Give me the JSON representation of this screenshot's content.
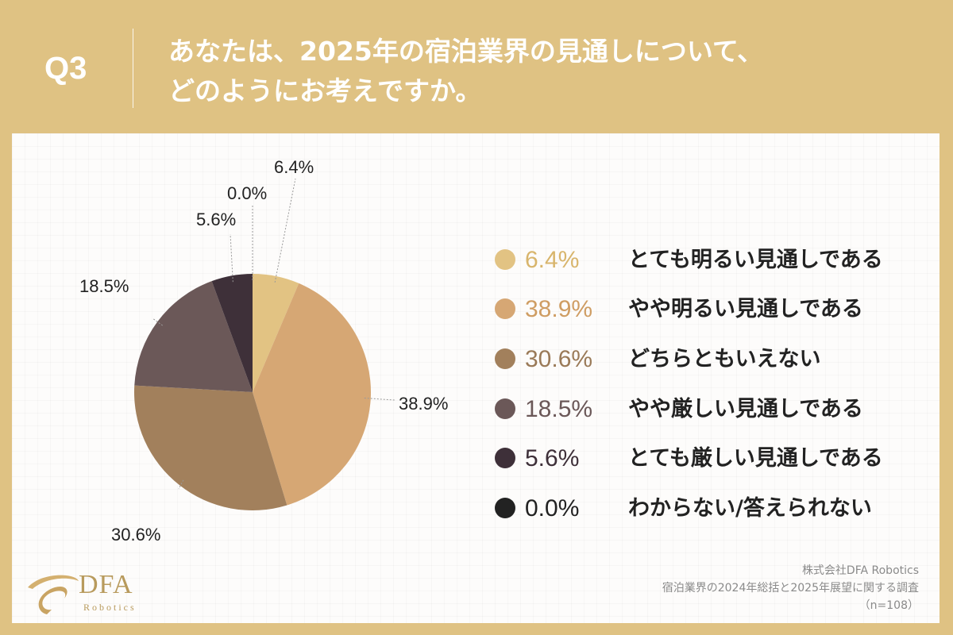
{
  "header": {
    "q_label": "Q3",
    "question_line1": "あなたは、2025年の宿泊業界の見通しについて、",
    "question_line2": "どのようにお考えですか。"
  },
  "chart_data": {
    "type": "pie",
    "unit": "%",
    "slices": [
      {
        "label": "とても明るい見通しである",
        "value": 6.4,
        "value_label": "6.4%",
        "color": "#e2c383"
      },
      {
        "label": "やや明るい見通しである",
        "value": 38.9,
        "value_label": "38.9%",
        "color": "#d6a774"
      },
      {
        "label": "どちらともいえない",
        "value": 30.6,
        "value_label": "30.6%",
        "color": "#a2805c"
      },
      {
        "label": "やや厳しい見通しである",
        "value": 18.5,
        "value_label": "18.5%",
        "color": "#6b5858"
      },
      {
        "label": "とても厳しい見通しである",
        "value": 5.6,
        "value_label": "5.6%",
        "color": "#3e3039"
      },
      {
        "label": "わからない/答えられない",
        "value": 0.0,
        "value_label": "0.0%",
        "color": "#222222"
      }
    ],
    "legend_position": "right"
  },
  "brand": {
    "logo_text": "DFA",
    "logo_subtext": "Robotics"
  },
  "source": {
    "line1": "株式会社DFA Robotics",
    "line2": "宿泊業界の2024年総括と2025年展望に関する調査",
    "line3": "（n=108）"
  }
}
